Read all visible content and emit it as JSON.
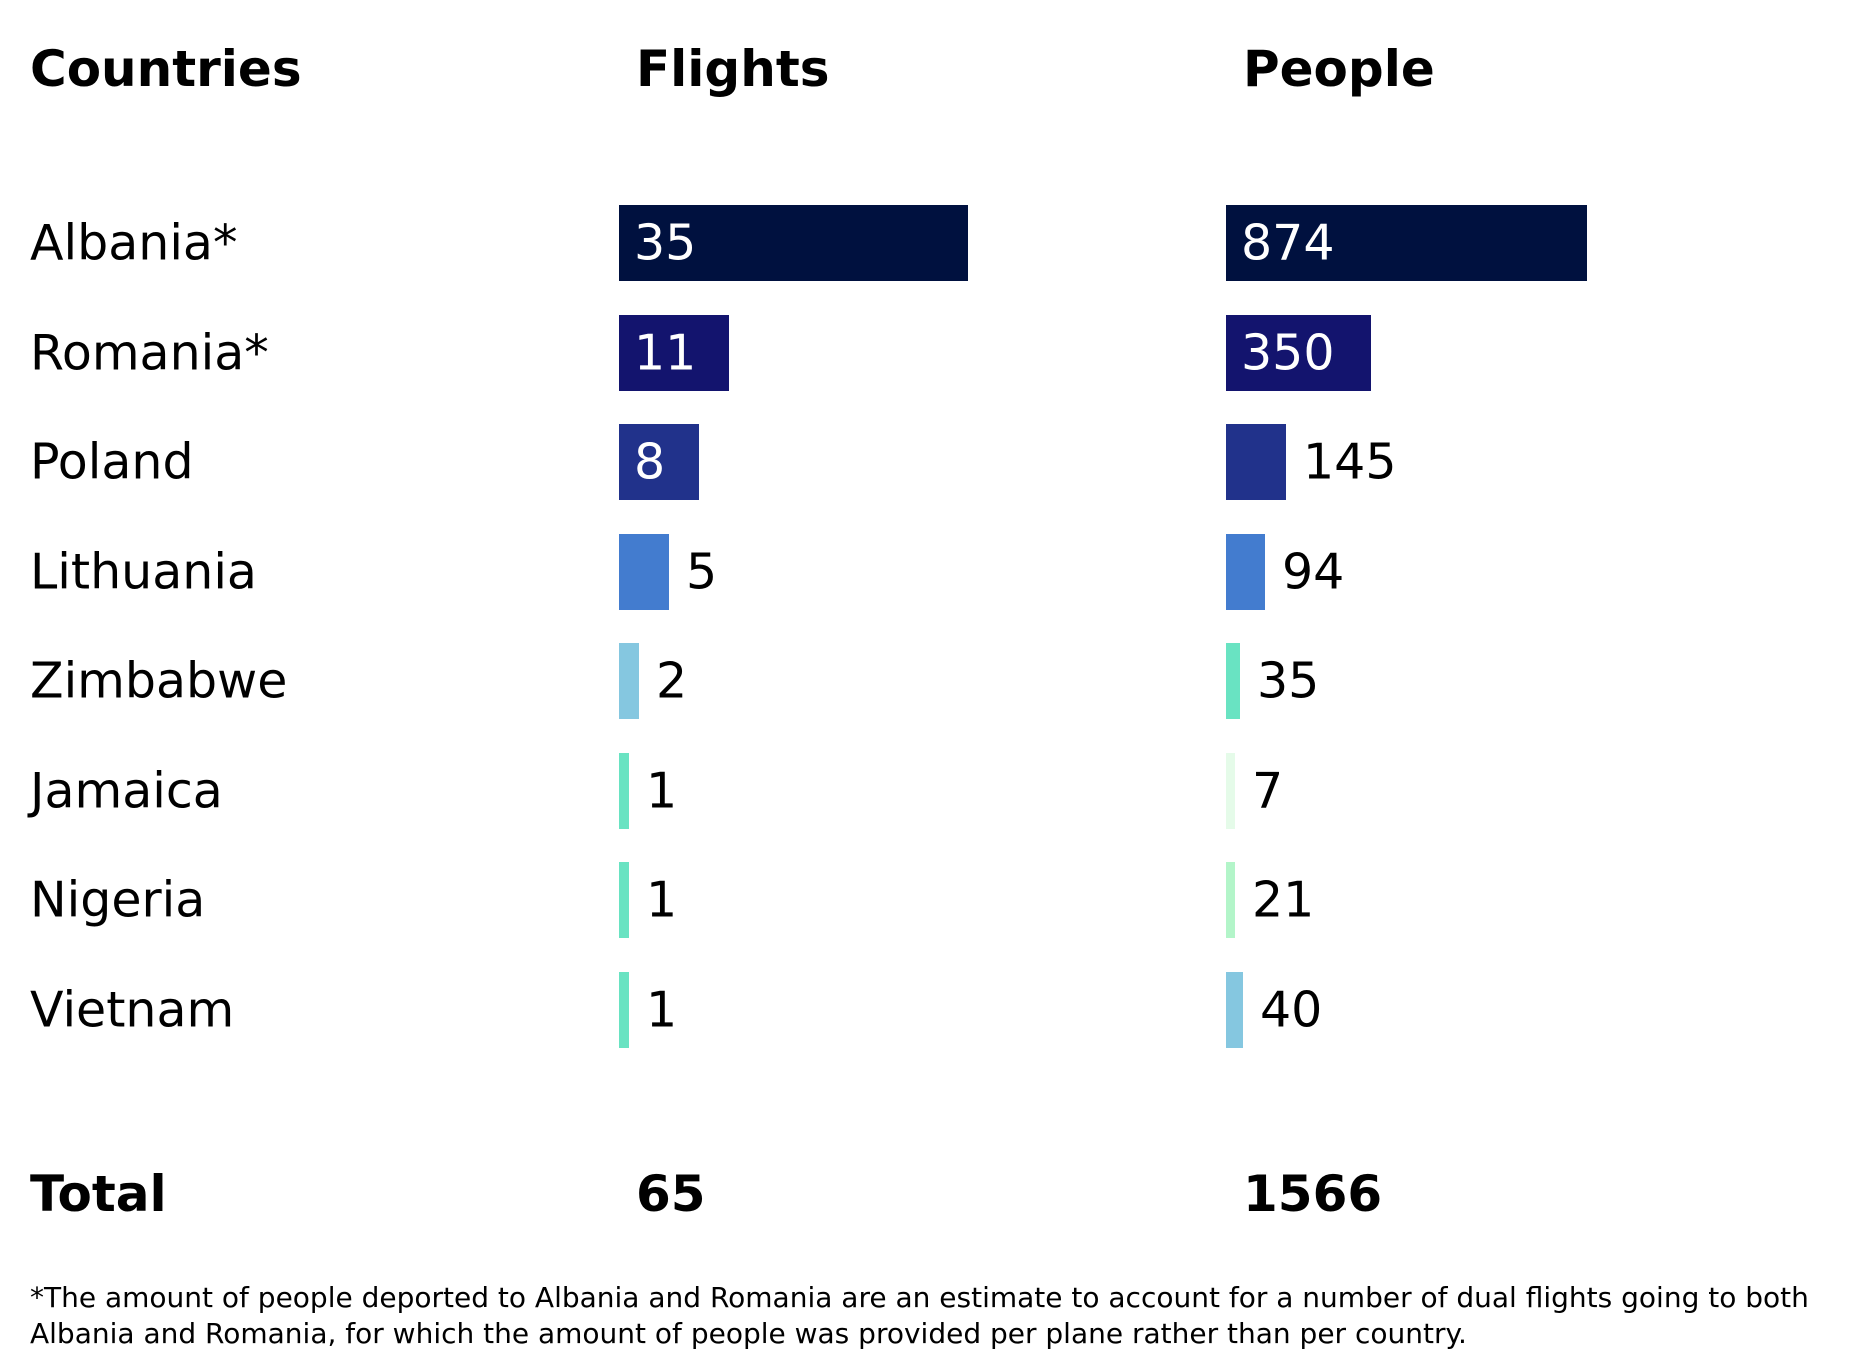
{
  "chart_data": {
    "type": "bar",
    "orientation": "horizontal",
    "headers": {
      "countries": "Countries",
      "flights": "Flights",
      "people": "People"
    },
    "categories": [
      "Albania*",
      "Romania*",
      "Poland",
      "Lithuania",
      "Zimbabwe",
      "Jamaica",
      "Nigeria",
      "Vietnam"
    ],
    "series": [
      {
        "key": "flights",
        "values": [
          35,
          11,
          8,
          5,
          2,
          1,
          1,
          1
        ],
        "colors": [
          "#00113f",
          "#13146e",
          "#21328b",
          "#437ccf",
          "#85c7e0",
          "#69e3c2",
          "#69e3c2",
          "#69e3c2"
        ]
      },
      {
        "key": "people",
        "values": [
          874,
          350,
          145,
          94,
          35,
          7,
          21,
          40
        ],
        "colors": [
          "#00113f",
          "#13146e",
          "#21328b",
          "#437ccf",
          "#69e3c2",
          "#e5fbe9",
          "#b3f5c9",
          "#85c7e0"
        ]
      }
    ],
    "totals": {
      "label": "Total",
      "flights": "65",
      "people": "1566"
    },
    "footnote": "*The amount of people deported to Albania and Romania are an estimate to account for a number of dual flights going to both Albania and Romania, for which the amount of people was provided per plane rather than per country."
  }
}
